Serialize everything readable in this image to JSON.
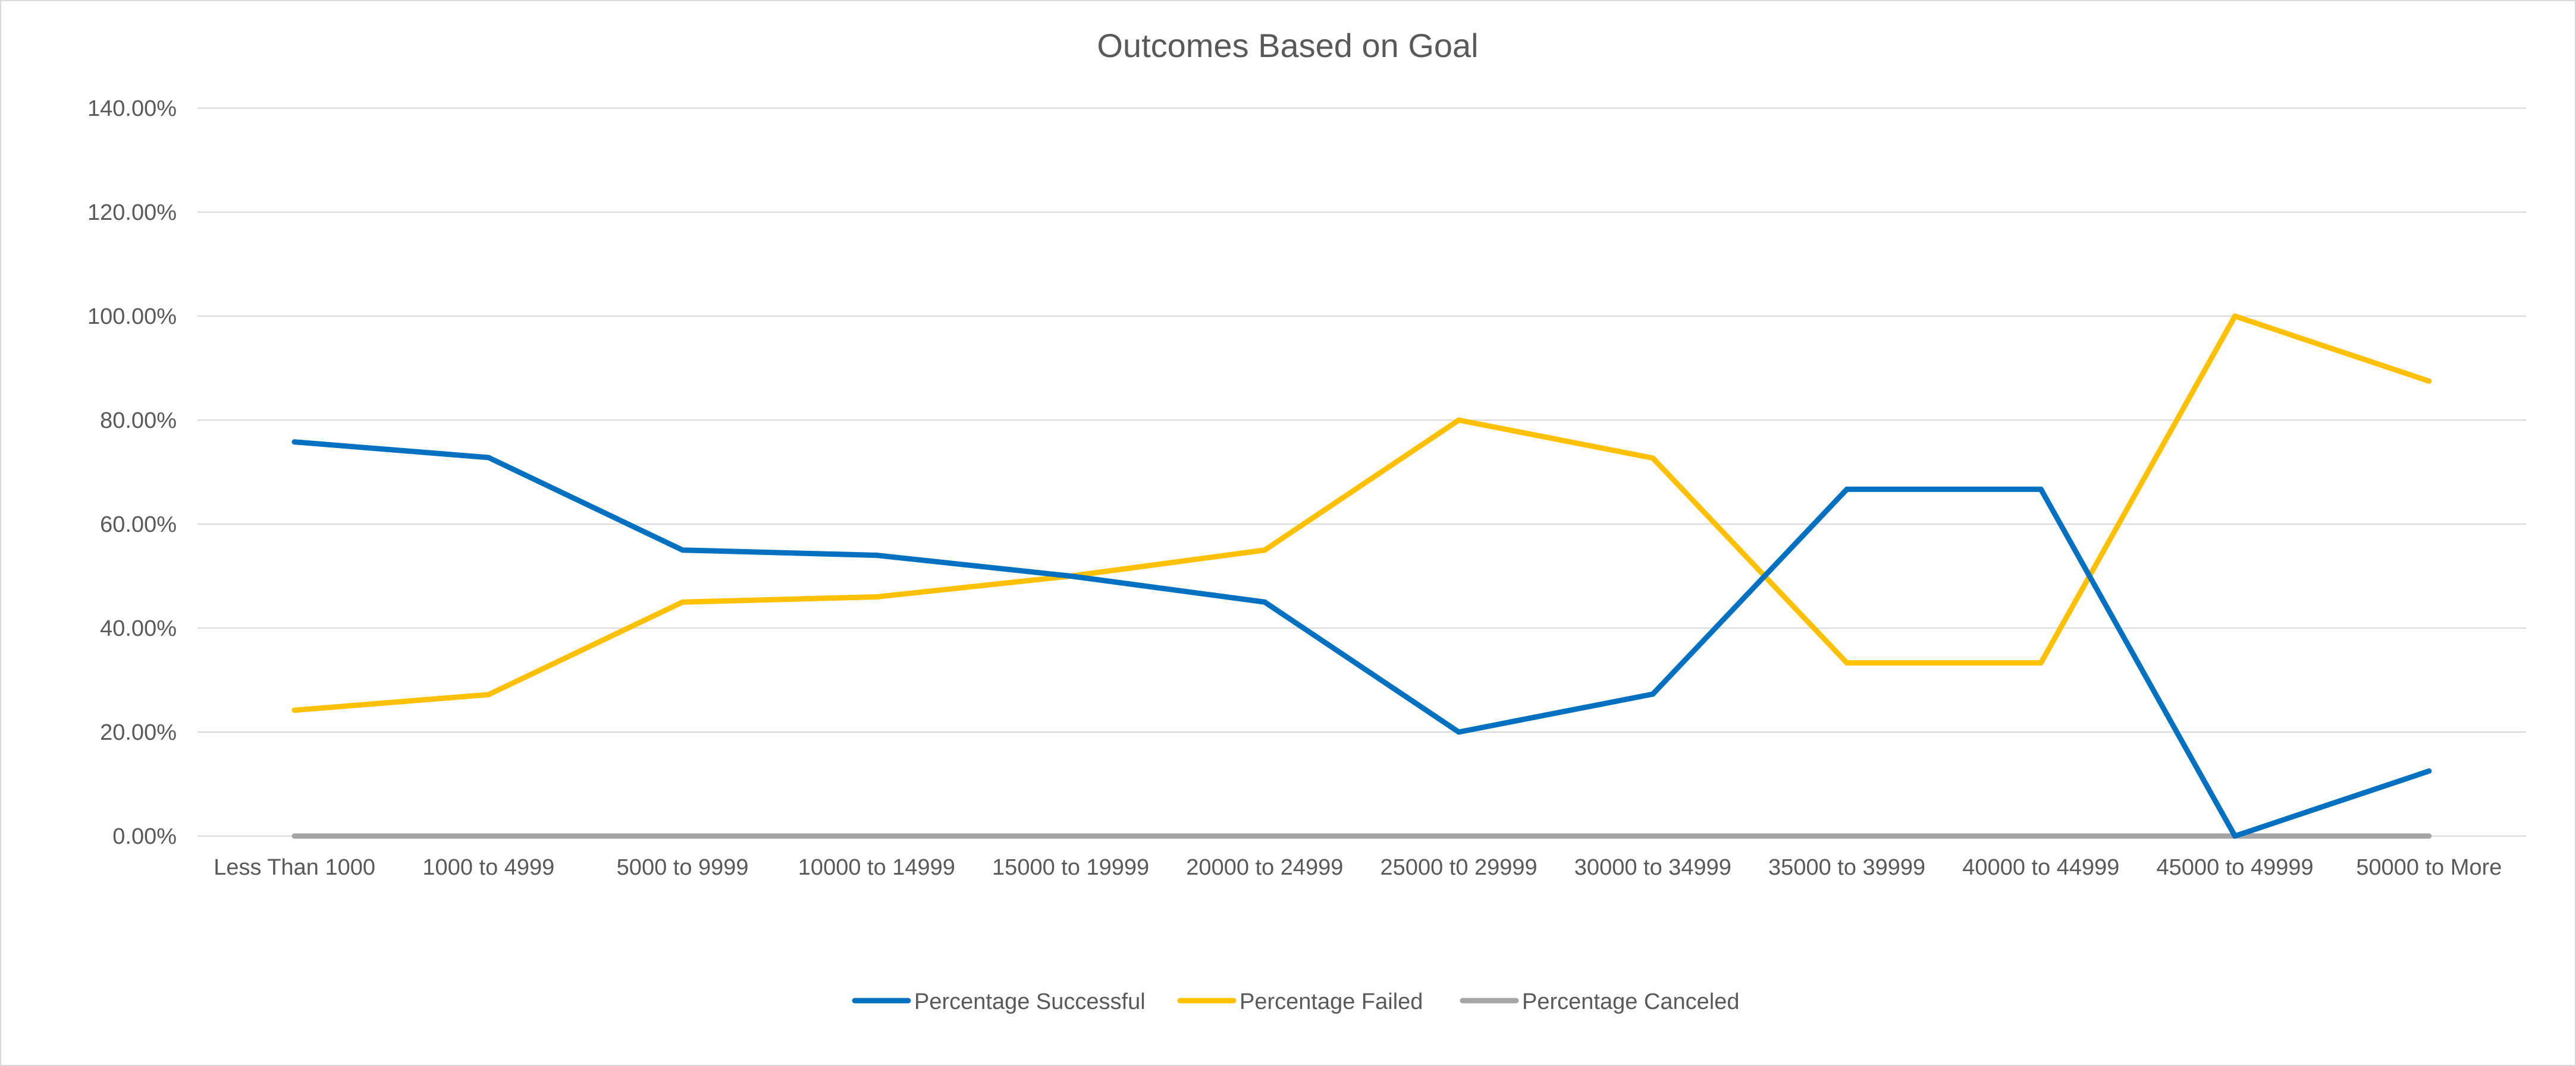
{
  "chart_data": {
    "type": "line",
    "title": "Outcomes Based on Goal",
    "xlabel": "",
    "ylabel": "",
    "categories": [
      "Less Than 1000",
      "1000 to 4999",
      "5000 to 9999",
      "10000 to 14999",
      "15000 to 19999",
      "20000 to 24999",
      "25000 t0 29999",
      "30000 to 34999",
      "35000 to 39999",
      "40000 to 44999",
      "45000 to 49999",
      "50000 to More"
    ],
    "series": [
      {
        "name": "Percentage Successful",
        "color": "#0070C0",
        "values": [
          75.8,
          72.8,
          55.0,
          54.0,
          50.0,
          45.0,
          20.0,
          27.3,
          66.7,
          66.7,
          0.0,
          12.5
        ]
      },
      {
        "name": "Percentage Failed",
        "color": "#FFC000",
        "values": [
          24.2,
          27.2,
          45.0,
          46.0,
          50.0,
          55.0,
          80.0,
          72.7,
          33.3,
          33.3,
          100.0,
          87.5
        ]
      },
      {
        "name": "Percentage Canceled",
        "color": "#A5A5A5",
        "values": [
          0,
          0,
          0,
          0,
          0,
          0,
          0,
          0,
          0,
          0,
          0,
          0
        ]
      }
    ],
    "ylim": [
      0,
      140
    ],
    "yticks": [
      0,
      20,
      40,
      60,
      80,
      100,
      120,
      140
    ],
    "ytick_labels": [
      "0.00%",
      "20.00%",
      "40.00%",
      "60.00%",
      "80.00%",
      "100.00%",
      "120.00%",
      "140.00%"
    ],
    "grid": true,
    "grid_color": "#d9d9d9",
    "legend_position": "bottom"
  }
}
